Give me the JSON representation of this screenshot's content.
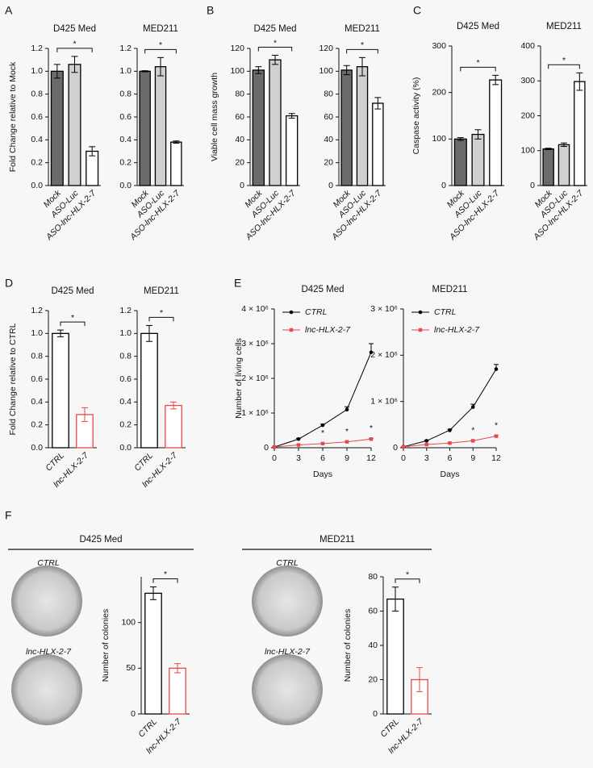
{
  "panels": [
    "A",
    "B",
    "C",
    "D",
    "E",
    "F"
  ],
  "colony_assay": {
    "groups": [
      {
        "title": "D425 Med",
        "samples": [
          "CTRL",
          "lnc-HLX-2-7"
        ]
      },
      {
        "title": "MED211",
        "samples": [
          "CTRL",
          "lnc-HLX-2-7"
        ]
      }
    ]
  },
  "chart_data": [
    {
      "type": "bar",
      "title": "D425 Med",
      "ylabel": "Fold Change relative to Mock",
      "categories": [
        "Mock",
        "ASO-Luc",
        "ASO-lnc-HLX-2-7"
      ],
      "values": [
        1.0,
        1.06,
        0.3
      ],
      "errors": [
        0.06,
        0.07,
        0.04
      ],
      "fill_colors": [
        "#6b6b6b",
        "#d0d0d0",
        "#ffffff"
      ],
      "edge_colors": [
        "#000000",
        "#000000",
        "#000000"
      ],
      "ylim": [
        0,
        1.2
      ],
      "yticks": [
        {
          "value": 0,
          "label": "0.0"
        },
        0.2,
        0.4,
        0.6,
        0.8,
        {
          "value": 1,
          "label": "1.0"
        },
        1.2
      ],
      "significance": "*"
    },
    {
      "type": "bar",
      "title": "MED211",
      "categories": [
        "Mock",
        "ASO-Luc",
        "ASO-lnc-HLX-2-7"
      ],
      "values": [
        1.0,
        1.04,
        0.38
      ],
      "errors": [
        0.005,
        0.08,
        0.01
      ],
      "fill_colors": [
        "#6b6b6b",
        "#d0d0d0",
        "#ffffff"
      ],
      "edge_colors": [
        "#000000",
        "#000000",
        "#000000"
      ],
      "ylim": [
        0,
        1.2
      ],
      "yticks": [
        {
          "value": 0,
          "label": "0.0"
        },
        0.2,
        0.4,
        0.6,
        0.8,
        {
          "value": 1,
          "label": "1.0"
        },
        1.2
      ],
      "significance": "*"
    },
    {
      "type": "bar",
      "title": "D425 Med",
      "ylabel": "Viable cell mass growth",
      "categories": [
        "Mock",
        "ASO-Luc",
        "ASO-lnc-HLX-2-7"
      ],
      "values": [
        101,
        110,
        61
      ],
      "errors": [
        3,
        4,
        2
      ],
      "fill_colors": [
        "#6b6b6b",
        "#d0d0d0",
        "#ffffff"
      ],
      "edge_colors": [
        "#000000",
        "#000000",
        "#000000"
      ],
      "ylim": [
        0,
        120
      ],
      "yticks": [
        0,
        20,
        40,
        60,
        80,
        100,
        120
      ],
      "significance": "*"
    },
    {
      "type": "bar",
      "title": "MED211",
      "categories": [
        "Mock",
        "ASO-Luc",
        "ASO-lnc-HLX-2-7"
      ],
      "values": [
        101,
        104,
        72
      ],
      "errors": [
        4,
        8,
        5
      ],
      "fill_colors": [
        "#6b6b6b",
        "#d0d0d0",
        "#ffffff"
      ],
      "edge_colors": [
        "#000000",
        "#000000",
        "#000000"
      ],
      "ylim": [
        0,
        120
      ],
      "yticks": [
        0,
        20,
        40,
        60,
        80,
        100,
        120
      ],
      "significance": "*"
    },
    {
      "type": "bar",
      "title": "D425 Med",
      "ylabel": "Caspase activity (%)",
      "categories": [
        "Mock",
        "ASO-Luc",
        "ASO-lnc-HLX-2-7"
      ],
      "values": [
        100,
        110,
        227
      ],
      "errors": [
        3,
        10,
        10
      ],
      "fill_colors": [
        "#6b6b6b",
        "#d0d0d0",
        "#ffffff"
      ],
      "edge_colors": [
        "#000000",
        "#000000",
        "#000000"
      ],
      "ylim": [
        0,
        300
      ],
      "yticks": [
        0,
        100,
        200,
        300
      ],
      "significance": "*"
    },
    {
      "type": "bar",
      "title": "MED211",
      "categories": [
        "Mock",
        "ASO-Luc",
        "ASO-lnc-HLX-2-7"
      ],
      "values": [
        105,
        117,
        298
      ],
      "errors": [
        2,
        5,
        25
      ],
      "fill_colors": [
        "#6b6b6b",
        "#d0d0d0",
        "#ffffff"
      ],
      "edge_colors": [
        "#000000",
        "#000000",
        "#000000"
      ],
      "ylim": [
        0,
        400
      ],
      "yticks": [
        0,
        100,
        200,
        300,
        400
      ],
      "significance": "*"
    },
    {
      "type": "bar",
      "title": "D425 Med",
      "ylabel": "Fold Change relative to CTRL",
      "categories": [
        "CTRL",
        "lnc-HLX-2-7"
      ],
      "values": [
        1.0,
        0.29
      ],
      "errors": [
        0.03,
        0.06
      ],
      "fill_colors": [
        "#ffffff",
        "#ffffff"
      ],
      "edge_colors": [
        "#000000",
        "#e8494a"
      ],
      "ylim": [
        0,
        1.2
      ],
      "yticks": [
        {
          "value": 0,
          "label": "0.0"
        },
        0.2,
        0.4,
        0.6,
        0.8,
        {
          "value": 1,
          "label": "1.0"
        },
        1.2
      ],
      "significance": "*"
    },
    {
      "type": "bar",
      "title": "MED211",
      "categories": [
        "CTRL",
        "lnc-HLX-2-7"
      ],
      "values": [
        1.0,
        0.37
      ],
      "errors": [
        0.07,
        0.03
      ],
      "fill_colors": [
        "#ffffff",
        "#ffffff"
      ],
      "edge_colors": [
        "#000000",
        "#e8494a"
      ],
      "ylim": [
        0,
        1.2
      ],
      "yticks": [
        {
          "value": 0,
          "label": "0.0"
        },
        0.2,
        0.4,
        0.6,
        0.8,
        {
          "value": 1,
          "label": "1.0"
        },
        1.2
      ],
      "significance": "*"
    },
    {
      "type": "line",
      "title": "D425 Med",
      "ylabel": "Number of living cells",
      "xlabel": "Days",
      "x": [
        0,
        3,
        6,
        9,
        12
      ],
      "xlim": [
        0,
        12
      ],
      "xticks": [
        0,
        3,
        6,
        9,
        12
      ],
      "ylim": [
        0,
        4000000
      ],
      "yticks": [
        0,
        {
          "value": 1000000,
          "label": "1 × 10⁶"
        },
        {
          "value": 2000000,
          "label": "2 × 10⁶"
        },
        {
          "value": 3000000,
          "label": "3 × 10⁶"
        },
        {
          "value": 4000000,
          "label": "4 × 10⁶"
        }
      ],
      "series": [
        {
          "name": "CTRL",
          "color": "#000000",
          "marker": "circle",
          "values": [
            20000,
            250000,
            650000,
            1100000,
            2750000
          ],
          "errors": [
            0,
            20000,
            30000,
            80000,
            250000
          ]
        },
        {
          "name": "lnc-HLX-2-7",
          "color": "#e8494a",
          "marker": "square",
          "values": [
            20000,
            80000,
            120000,
            170000,
            250000
          ],
          "errors": [
            0,
            5000,
            10000,
            10000,
            20000
          ]
        }
      ],
      "significance": [
        "*",
        "*",
        "*"
      ]
    },
    {
      "type": "line",
      "title": "MED211",
      "xlabel": "Days",
      "x": [
        0,
        3,
        6,
        9,
        12
      ],
      "xlim": [
        0,
        12
      ],
      "xticks": [
        0,
        3,
        6,
        9,
        12
      ],
      "ylim": [
        0,
        3000000
      ],
      "yticks": [
        0,
        {
          "value": 1000000,
          "label": "1 × 10⁶"
        },
        {
          "value": 2000000,
          "label": "2 × 10⁶"
        },
        {
          "value": 3000000,
          "label": "3 × 10⁶"
        }
      ],
      "series": [
        {
          "name": "CTRL",
          "color": "#000000",
          "marker": "circle",
          "values": [
            20000,
            150000,
            380000,
            880000,
            1700000
          ],
          "errors": [
            0,
            10000,
            20000,
            60000,
            100000
          ]
        },
        {
          "name": "lnc-HLX-2-7",
          "color": "#e8494a",
          "marker": "square",
          "values": [
            20000,
            70000,
            100000,
            150000,
            250000
          ],
          "errors": [
            0,
            5000,
            8000,
            10000,
            15000
          ]
        }
      ],
      "significance": [
        "*",
        "*",
        "*"
      ]
    },
    {
      "type": "bar",
      "ylabel": "Number of colonies",
      "categories": [
        "CTRL",
        "lnc-HLX-2-7"
      ],
      "values": [
        132,
        50
      ],
      "errors": [
        7,
        5
      ],
      "fill_colors": [
        "#ffffff",
        "#ffffff"
      ],
      "edge_colors": [
        "#000000",
        "#e8494a"
      ],
      "ylim": [
        0,
        150
      ],
      "yticks": [
        0,
        50,
        100
      ],
      "significance": "*"
    },
    {
      "type": "bar",
      "ylabel": "Number of colonies",
      "categories": [
        "CTRL",
        "lnc-HLX-2-7"
      ],
      "values": [
        67,
        20
      ],
      "errors": [
        7,
        7
      ],
      "fill_colors": [
        "#ffffff",
        "#ffffff"
      ],
      "edge_colors": [
        "#000000",
        "#e8494a"
      ],
      "ylim": [
        0,
        80
      ],
      "yticks": [
        0,
        20,
        40,
        60,
        80
      ],
      "significance": "*"
    }
  ]
}
